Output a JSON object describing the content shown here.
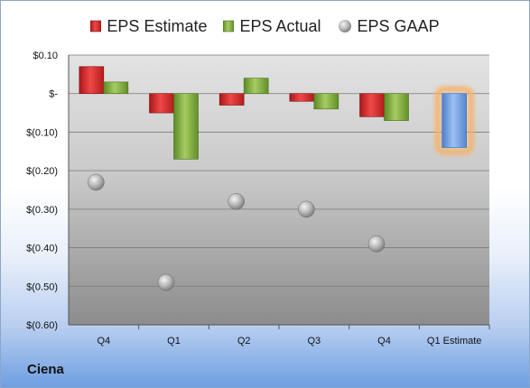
{
  "company": "Ciena",
  "colors": {
    "estimate": "#d42a2a",
    "actual": "#7aa83a",
    "gaap": "#b9b9b9",
    "upcoming": "#6f9de0",
    "highlight": "#f7b267"
  },
  "chart_data": {
    "type": "bar",
    "legend": [
      "EPS Estimate",
      "EPS Actual",
      "EPS GAAP"
    ],
    "legend_position": "top",
    "categories": [
      "Q4",
      "Q1",
      "Q2",
      "Q3",
      "Q4",
      "Q1 Estimate"
    ],
    "series": [
      {
        "name": "EPS Estimate",
        "kind": "bar",
        "values": [
          0.07,
          -0.05,
          -0.03,
          -0.02,
          -0.06,
          null
        ]
      },
      {
        "name": "EPS Actual",
        "kind": "bar",
        "values": [
          0.03,
          -0.17,
          0.04,
          -0.04,
          -0.07,
          -0.14
        ]
      },
      {
        "name": "EPS GAAP",
        "kind": "marker",
        "values": [
          -0.23,
          -0.49,
          -0.28,
          -0.3,
          -0.39,
          null
        ]
      }
    ],
    "y_ticks": [
      {
        "value": 0.1,
        "label": "$0.10"
      },
      {
        "value": 0,
        "label": "$-"
      },
      {
        "value": -0.1,
        "label": "$(0.10)"
      },
      {
        "value": -0.2,
        "label": "$(0.20)"
      },
      {
        "value": -0.3,
        "label": "$(0.30)"
      },
      {
        "value": -0.4,
        "label": "$(0.40)"
      },
      {
        "value": -0.5,
        "label": "$(0.50)"
      },
      {
        "value": -0.6,
        "label": "$(0.60)"
      }
    ],
    "ylim": [
      -0.6,
      0.1
    ],
    "grid": true,
    "highlighted_category": "Q1 Estimate"
  }
}
